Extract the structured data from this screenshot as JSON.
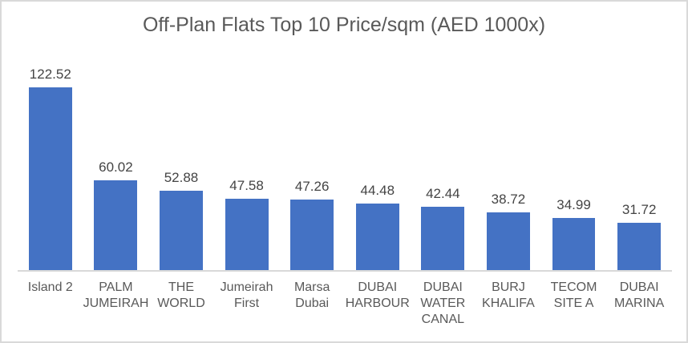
{
  "chart_data": {
    "type": "bar",
    "title": "Off-Plan Flats Top 10 Price/sqm (AED 1000x)",
    "categories": [
      "Island 2",
      "PALM JUMEIRAH",
      "THE WORLD",
      "Jumeirah First",
      "Marsa Dubai",
      "DUBAI HARBOUR",
      "DUBAI WATER CANAL",
      "BURJ KHALIFA",
      "TECOM SITE A",
      "DUBAI MARINA"
    ],
    "values": [
      122.52,
      60.02,
      52.88,
      47.58,
      47.26,
      44.48,
      42.44,
      38.72,
      34.99,
      31.72
    ],
    "data_labels": [
      "122.52",
      "60.02",
      "52.88",
      "47.58",
      "47.26",
      "44.48",
      "42.44",
      "38.72",
      "34.99",
      "31.72"
    ],
    "xlabel": "",
    "ylabel": "",
    "ylim": [
      0,
      140
    ],
    "grid": false,
    "legend": false,
    "data_labels_position": "outside-end",
    "bar_color": "#4472c4",
    "axis_line_color": "#d9d9d9",
    "border_color": "#d9d9d9",
    "title_color": "#595959",
    "value_label_color": "#444444",
    "category_label_color": "#595959",
    "background_color": "#ffffff"
  }
}
